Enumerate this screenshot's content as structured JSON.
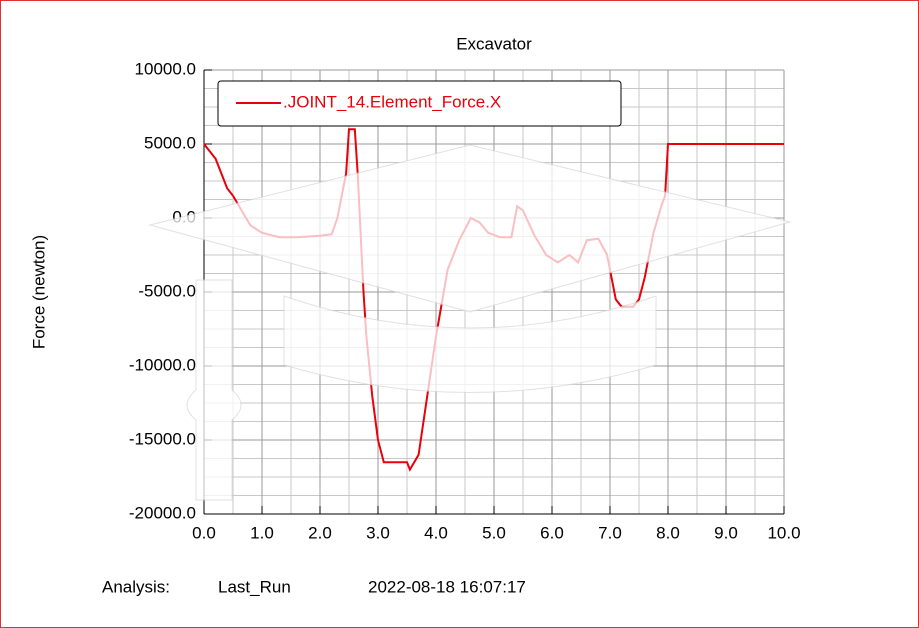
{
  "chart_data": {
    "type": "line",
    "title": "Excavator",
    "ylabel": "Force (newton)",
    "footer": {
      "analysis_label": "Analysis:",
      "analysis": "Last_Run",
      "timestamp": "2022-08-18 16:07:17"
    },
    "xlim": [
      0,
      10
    ],
    "ylim": [
      -20000,
      10000
    ],
    "xticks": [
      {
        "value": 0,
        "label": "0.0"
      },
      {
        "value": 1,
        "label": "1.0"
      },
      {
        "value": 2,
        "label": "2.0"
      },
      {
        "value": 3,
        "label": "3.0"
      },
      {
        "value": 4,
        "label": "4.0"
      },
      {
        "value": 5,
        "label": "5.0"
      },
      {
        "value": 6,
        "label": "6.0"
      },
      {
        "value": 7,
        "label": "7.0"
      },
      {
        "value": 8,
        "label": "8.0"
      },
      {
        "value": 9,
        "label": "9.0"
      },
      {
        "value": 10,
        "label": "10.0"
      }
    ],
    "yticks": [
      {
        "value": -20000,
        "label": "-20000.0"
      },
      {
        "value": -15000,
        "label": "-15000.0"
      },
      {
        "value": -10000,
        "label": "-10000.0"
      },
      {
        "value": -5000,
        "label": "-5000.0"
      },
      {
        "value": 0,
        "label": "0.0"
      },
      {
        "value": 5000,
        "label": "5000.0"
      },
      {
        "value": 10000,
        "label": "10000.0"
      }
    ],
    "grid": true,
    "legend": "upper left",
    "series": [
      {
        "name": ".JOINT_14.Element_Force.X",
        "color": "#e8000b",
        "x": [
          0,
          0.2,
          0.4,
          0.5,
          0.8,
          1.0,
          1.3,
          1.6,
          2.0,
          2.2,
          2.3,
          2.45,
          2.5,
          2.6,
          2.65,
          2.75,
          2.8,
          2.9,
          3.0,
          3.1,
          3.5,
          3.55,
          3.7,
          3.85,
          4.0,
          4.2,
          4.4,
          4.6,
          4.75,
          4.9,
          5.1,
          5.3,
          5.4,
          5.5,
          5.7,
          5.9,
          6.1,
          6.3,
          6.45,
          6.6,
          6.8,
          6.95,
          7.1,
          7.2,
          7.4,
          7.5,
          7.6,
          7.75,
          7.9,
          7.95,
          8.0,
          10.0
        ],
        "values": [
          5000,
          4000,
          2000,
          1500,
          -500,
          -1000,
          -1300,
          -1300,
          -1200,
          -1100,
          0,
          3000,
          6000,
          6000,
          3000,
          -5000,
          -8000,
          -12000,
          -15000,
          -16500,
          -16500,
          -17000,
          -16000,
          -12000,
          -8000,
          -3500,
          -1500,
          0,
          -300,
          -1000,
          -1300,
          -1300,
          800,
          500,
          -1200,
          -2500,
          -3000,
          -2500,
          -3000,
          -1500,
          -1400,
          -2500,
          -5500,
          -6000,
          -6000,
          -5500,
          -4000,
          -1000,
          1000,
          1500,
          5000,
          5000
        ]
      }
    ]
  }
}
